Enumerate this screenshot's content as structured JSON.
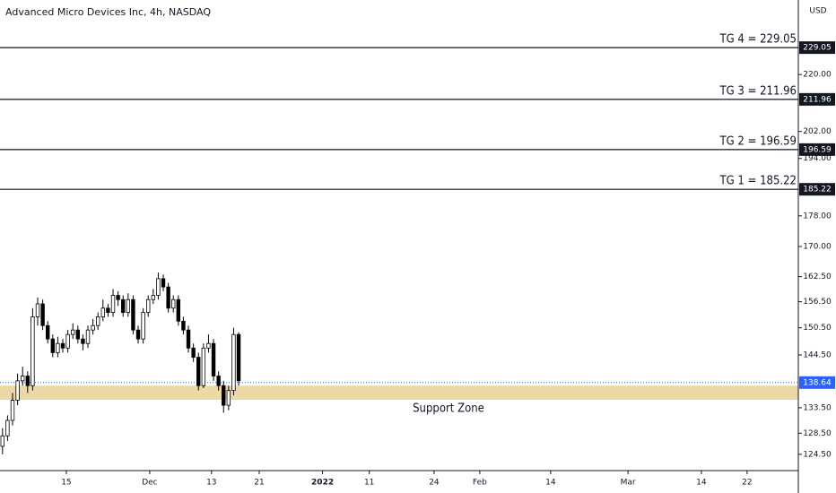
{
  "chart_data": {
    "type": "candlestick",
    "title": "Advanced Micro Devices Inc, 4h, NASDAQ",
    "currency": "USD",
    "log_scale": true,
    "up_color": "#ffffff",
    "down_color": "#000000",
    "x": [
      0,
      1,
      2,
      3,
      4,
      5,
      6,
      7,
      8,
      9,
      10,
      11,
      12,
      13,
      14,
      15,
      16,
      17,
      18,
      19,
      20,
      21,
      22,
      23,
      24,
      25,
      26,
      27,
      28,
      29,
      30,
      31,
      32,
      33,
      34,
      35,
      36,
      37,
      38,
      39,
      40,
      41,
      42,
      43,
      44,
      45,
      46,
      47
    ],
    "open": [
      126,
      128,
      131,
      135,
      139,
      140,
      138,
      153,
      156,
      151,
      148,
      145,
      147,
      146,
      149,
      150,
      148,
      147,
      150,
      151,
      153,
      155,
      154,
      158,
      157,
      154,
      157,
      150,
      148,
      154,
      157,
      158,
      162,
      160,
      155,
      157,
      152,
      150,
      146,
      144,
      138,
      146,
      147,
      140,
      138,
      134,
      137,
      149
    ],
    "high": [
      129.5,
      132,
      136.5,
      140.5,
      142,
      141,
      155,
      157.5,
      157,
      152,
      149,
      148.5,
      148,
      150,
      151.5,
      151,
      149,
      151,
      152.5,
      154,
      157,
      156,
      159.5,
      159,
      158,
      158.5,
      158,
      151,
      155,
      158,
      159.5,
      163.5,
      163,
      161,
      158,
      158,
      153,
      151,
      147,
      145,
      147,
      149,
      148,
      141,
      139,
      138,
      150.5,
      149.5
    ],
    "low": [
      124.5,
      127,
      130,
      134,
      138,
      136.5,
      137,
      151,
      150,
      147,
      144,
      144,
      145,
      145,
      148,
      147,
      145.5,
      146,
      149,
      150,
      152,
      153,
      153,
      155.5,
      153,
      153,
      149,
      147,
      147,
      153,
      156,
      157,
      159,
      154,
      154,
      151,
      149,
      145,
      143,
      137,
      137.5,
      145,
      139,
      137,
      132.5,
      133,
      136,
      138
    ],
    "close": [
      128,
      131,
      135,
      139,
      140,
      138,
      153,
      156,
      151,
      148,
      145,
      147,
      146,
      149,
      150,
      148,
      147,
      150,
      151,
      153,
      155,
      154,
      158,
      157,
      154,
      157,
      150,
      148,
      154,
      157,
      158,
      162,
      160,
      155,
      157,
      152,
      150,
      146,
      144,
      138,
      146,
      147,
      140,
      138,
      134,
      137,
      149,
      139
    ],
    "xlim": [
      -0.5,
      158.4
    ],
    "xticks": [
      {
        "value": 12.7,
        "label": "15"
      },
      {
        "value": 29.3,
        "label": "Dec"
      },
      {
        "value": 41.6,
        "label": "13"
      },
      {
        "value": 51.1,
        "label": "21"
      },
      {
        "value": 63.7,
        "label": "2022"
      },
      {
        "value": 73.0,
        "label": "11"
      },
      {
        "value": 85.9,
        "label": "24"
      },
      {
        "value": 95.0,
        "label": "Feb"
      },
      {
        "value": 109.1,
        "label": "14"
      },
      {
        "value": 124.5,
        "label": "Mar"
      },
      {
        "value": 139.1,
        "label": "14"
      },
      {
        "value": 148.2,
        "label": "22"
      }
    ],
    "ylim": [
      121.5,
      246
    ],
    "yticks": [
      {
        "value": 124.5,
        "label": "124.50"
      },
      {
        "value": 128.5,
        "label": "128.50"
      },
      {
        "value": 133.5,
        "label": "133.50"
      },
      {
        "value": 144.5,
        "label": "144.50"
      },
      {
        "value": 150.5,
        "label": "150.50"
      },
      {
        "value": 156.5,
        "label": "156.50"
      },
      {
        "value": 162.5,
        "label": "162.50"
      },
      {
        "value": 170,
        "label": "170.00"
      },
      {
        "value": 178,
        "label": "178.00"
      },
      {
        "value": 194,
        "label": "194.00"
      },
      {
        "value": 202,
        "label": "202.00"
      },
      {
        "value": 220,
        "label": "220.00"
      }
    ],
    "levels": [
      {
        "label": "TG 4 = 229.05",
        "value": 229.05
      },
      {
        "label": "TG 3 = 211.96",
        "value": 211.96
      },
      {
        "label": "TG 2 = 196.59",
        "value": 196.59
      },
      {
        "label": "TG 1 = 185.22",
        "value": 185.22
      }
    ],
    "last_price": 138.64,
    "last_price_color": "#2962ff",
    "support_zone": {
      "label": "Support Zone",
      "range": [
        135.1,
        138.0
      ],
      "color": "#ecd9a6"
    }
  }
}
